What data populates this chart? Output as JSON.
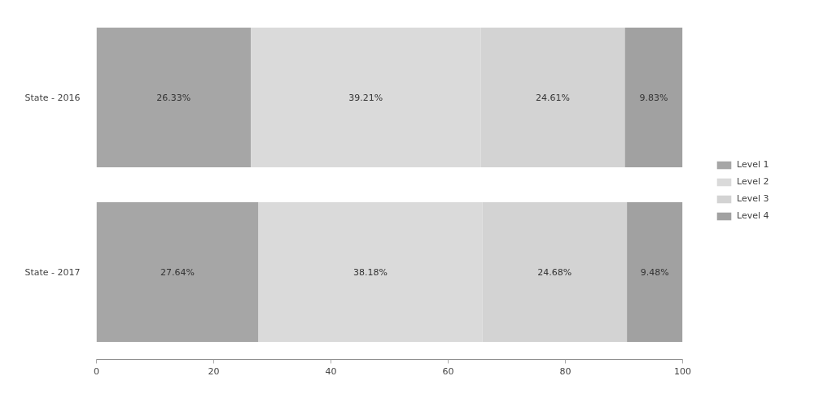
{
  "chart_data": {
    "type": "bar",
    "orientation": "horizontal",
    "stacked": true,
    "categories": [
      "State - 2016",
      "State - 2017"
    ],
    "series": [
      {
        "name": "Level 1",
        "color": "#a6a6a6",
        "values": [
          26.33,
          27.64
        ],
        "value_labels": [
          "26.33%",
          "27.64%"
        ]
      },
      {
        "name": "Level 2",
        "color": "#dadada",
        "values": [
          39.21,
          38.18
        ],
        "value_labels": [
          "39.21%",
          "38.18%"
        ]
      },
      {
        "name": "Level 3",
        "color": "#d3d3d3",
        "values": [
          24.61,
          24.68
        ],
        "value_labels": [
          "24.61%",
          "24.68%"
        ]
      },
      {
        "name": "Level 4",
        "color": "#a1a1a1",
        "values": [
          9.83,
          9.48
        ],
        "value_labels": [
          "9.83%",
          "9.48%"
        ]
      }
    ],
    "xlim": [
      0,
      100
    ],
    "xticks": [
      0,
      20,
      40,
      60,
      80,
      100
    ],
    "grid": false,
    "legend": "right"
  }
}
